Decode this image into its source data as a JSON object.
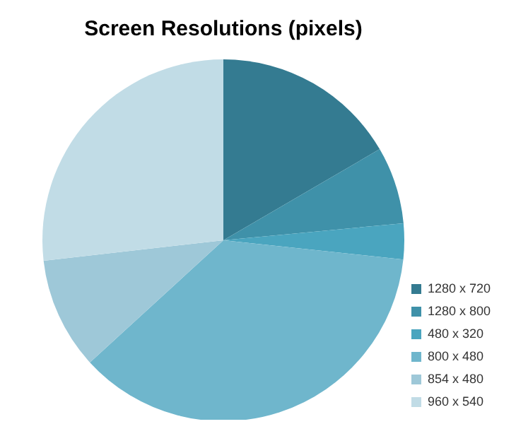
{
  "chart_data": {
    "type": "pie",
    "title": "Screen Resolutions (pixels)",
    "categories": [
      "1280 x 720",
      "1280 x 800",
      "480 x 320",
      "800 x 480",
      "854 x 480",
      "960 x 540"
    ],
    "values": [
      16.6,
      6.9,
      3.2,
      36.5,
      10.0,
      26.8
    ],
    "colors": [
      "#347b91",
      "#3f91a9",
      "#4aa5bf",
      "#6fb6cc",
      "#9ec8d8",
      "#c1dce6"
    ],
    "legend": "bottom right"
  }
}
